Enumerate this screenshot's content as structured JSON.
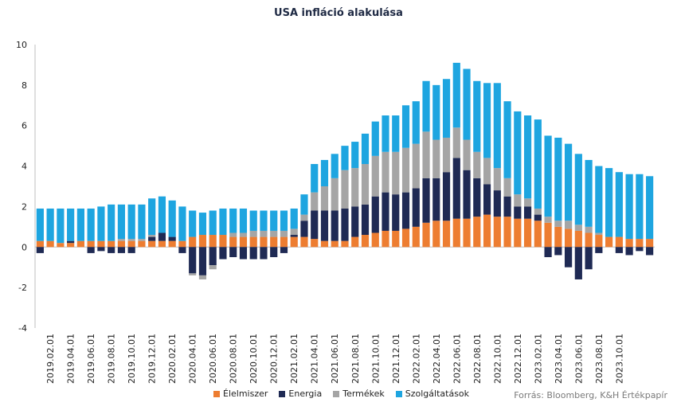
{
  "chart_data": {
    "type": "bar",
    "stacked": true,
    "title": "USA infláció alakulása",
    "source": "Forrás: Bloomberg, K&H Értékpapír",
    "ylim": [
      -4,
      10
    ],
    "yticks": [
      -4,
      -2,
      0,
      2,
      4,
      6,
      8,
      10
    ],
    "grid": false,
    "legend_position": "bottom",
    "categories": [
      "2019.01",
      "2019.02",
      "2019.03",
      "2019.04",
      "2019.05",
      "2019.06",
      "2019.07",
      "2019.08",
      "2019.09",
      "2019.10",
      "2019.11",
      "2019.12",
      "2020.01",
      "2020.02",
      "2020.03",
      "2020.04",
      "2020.05",
      "2020.06",
      "2020.07",
      "2020.08",
      "2020.09",
      "2020.10",
      "2020.11",
      "2020.12",
      "2021.01",
      "2021.02",
      "2021.03",
      "2021.04",
      "2021.05",
      "2021.06",
      "2021.07",
      "2021.08",
      "2021.09",
      "2021.10",
      "2021.11",
      "2021.12",
      "2022.01",
      "2022.02",
      "2022.03",
      "2022.04",
      "2022.05",
      "2022.06",
      "2022.07",
      "2022.08",
      "2022.09",
      "2022.10",
      "2022.11",
      "2022.12",
      "2023.01",
      "2023.02",
      "2023.03",
      "2023.04",
      "2023.05",
      "2023.06",
      "2023.07",
      "2023.08",
      "2023.09",
      "2023.10",
      "2023.11",
      "2023.12",
      "2024.01"
    ],
    "xtick_labels": [
      "2019.02.01",
      "2019.04.01",
      "2019.06.01",
      "2019.08.01",
      "2019.10.01",
      "2019.12.01",
      "2020.02.01",
      "2020.04.01",
      "2020.06.01",
      "2020.08.01",
      "2020.10.01",
      "2020.12.01",
      "2021.02.01",
      "2021.04.01",
      "2021.06.01",
      "2021.08.01",
      "2021.10.01",
      "2021.12.01",
      "2022.02.01",
      "2022.04.01",
      "2022.06.01",
      "2022.08.01",
      "2022.10.01",
      "2022.12.01",
      "2023.02.01",
      "2023.04.01",
      "2023.06.01",
      "2023.08.01",
      "2023.10.01"
    ],
    "series": [
      {
        "name": "Élelmiszer",
        "color": "#ed7d31",
        "values": [
          0.3,
          0.3,
          0.2,
          0.2,
          0.3,
          0.3,
          0.3,
          0.3,
          0.3,
          0.3,
          0.3,
          0.3,
          0.3,
          0.3,
          0.3,
          0.5,
          0.6,
          0.6,
          0.6,
          0.5,
          0.5,
          0.5,
          0.5,
          0.5,
          0.5,
          0.5,
          0.5,
          0.4,
          0.3,
          0.3,
          0.3,
          0.5,
          0.6,
          0.7,
          0.8,
          0.8,
          0.9,
          1.0,
          1.2,
          1.3,
          1.3,
          1.4,
          1.4,
          1.5,
          1.6,
          1.5,
          1.5,
          1.4,
          1.4,
          1.3,
          1.2,
          1.0,
          0.9,
          0.8,
          0.7,
          0.6,
          0.5,
          0.5,
          0.4,
          0.4,
          0.4
        ]
      },
      {
        "name": "Energia",
        "color": "#1f2a54",
        "values": [
          -0.3,
          0.0,
          0.0,
          0.1,
          0.0,
          -0.3,
          -0.2,
          -0.3,
          -0.3,
          -0.3,
          0.0,
          0.2,
          0.4,
          0.2,
          -0.3,
          -1.3,
          -1.4,
          -0.9,
          -0.6,
          -0.5,
          -0.6,
          -0.6,
          -0.6,
          -0.5,
          -0.3,
          0.1,
          0.8,
          1.4,
          1.5,
          1.5,
          1.6,
          1.5,
          1.5,
          1.8,
          1.9,
          1.8,
          1.8,
          1.9,
          2.2,
          2.1,
          2.4,
          3.0,
          2.4,
          1.9,
          1.5,
          1.3,
          1.0,
          0.6,
          0.6,
          0.3,
          -0.5,
          -0.4,
          -1.0,
          -1.6,
          -1.1,
          -0.3,
          0.0,
          -0.3,
          -0.4,
          -0.2,
          -0.4
        ]
      },
      {
        "name": "Termékek",
        "color": "#a5a5a5",
        "values": [
          0.0,
          0.0,
          0.0,
          0.0,
          0.0,
          0.0,
          0.0,
          0.0,
          0.1,
          0.1,
          0.1,
          0.1,
          0.0,
          0.0,
          0.0,
          -0.1,
          -0.2,
          -0.2,
          0.0,
          0.2,
          0.2,
          0.3,
          0.3,
          0.3,
          0.3,
          0.3,
          0.3,
          0.9,
          1.2,
          1.6,
          1.9,
          1.9,
          2.0,
          2.0,
          2.0,
          2.1,
          2.2,
          2.2,
          2.3,
          1.9,
          1.7,
          1.5,
          1.5,
          1.3,
          1.3,
          1.1,
          0.9,
          0.6,
          0.4,
          0.3,
          0.3,
          0.3,
          0.4,
          0.3,
          0.3,
          0.1,
          0.0,
          0.0,
          0.0,
          0.0,
          0.0
        ]
      },
      {
        "name": "Szolgáltatások",
        "color": "#1ea5e0",
        "values": [
          1.6,
          1.6,
          1.7,
          1.6,
          1.6,
          1.6,
          1.7,
          1.8,
          1.7,
          1.7,
          1.7,
          1.8,
          1.8,
          1.8,
          1.7,
          1.3,
          1.1,
          1.2,
          1.3,
          1.2,
          1.2,
          1.0,
          1.0,
          1.0,
          1.0,
          1.0,
          1.0,
          1.4,
          1.3,
          1.2,
          1.2,
          1.3,
          1.5,
          1.7,
          1.8,
          1.8,
          2.1,
          2.1,
          2.5,
          2.7,
          2.9,
          3.2,
          3.5,
          3.5,
          3.7,
          4.2,
          3.8,
          4.1,
          4.1,
          4.4,
          4.0,
          4.1,
          3.8,
          3.5,
          3.3,
          3.3,
          3.4,
          3.2,
          3.2,
          3.2,
          3.1
        ]
      }
    ]
  }
}
